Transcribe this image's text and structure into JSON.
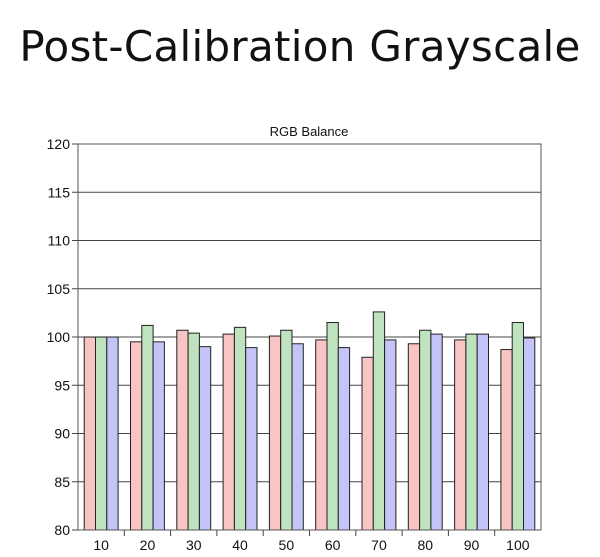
{
  "page": {
    "heading": "Post-Calibration Grayscale"
  },
  "chart_data": {
    "type": "bar",
    "title": "RGB Balance",
    "xlabel": "",
    "ylabel": "",
    "categories": [
      "10",
      "20",
      "30",
      "40",
      "50",
      "60",
      "70",
      "80",
      "90",
      "100"
    ],
    "ylim": [
      80,
      120
    ],
    "yticks": [
      80,
      85,
      90,
      95,
      100,
      105,
      110,
      115,
      120
    ],
    "grid": true,
    "legend": "none",
    "series": [
      {
        "color": "#f9c4c4",
        "values": [
          100.0,
          99.5,
          100.7,
          100.3,
          100.1,
          99.7,
          97.9,
          99.3,
          99.7,
          98.7
        ]
      },
      {
        "color": "#bfe3bf",
        "values": [
          100.0,
          101.2,
          100.4,
          101.0,
          100.7,
          101.5,
          102.6,
          100.7,
          100.3,
          101.5
        ]
      },
      {
        "color": "#c4c4f8",
        "values": [
          100.0,
          99.5,
          99.0,
          98.9,
          99.3,
          98.9,
          99.7,
          100.3,
          100.3,
          99.9
        ]
      }
    ]
  }
}
